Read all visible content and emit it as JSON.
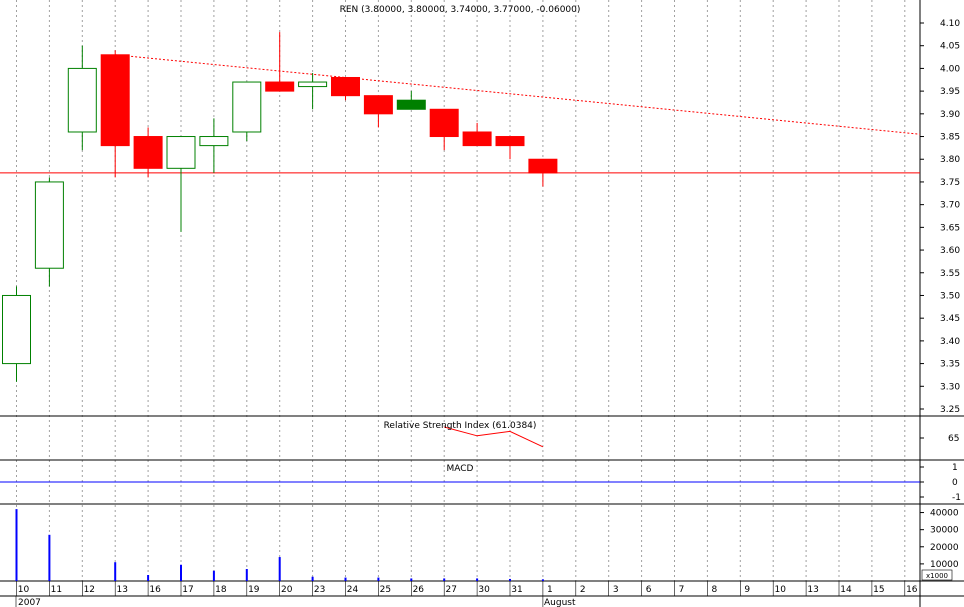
{
  "chart_data": {
    "type": "candlestick",
    "title": "REN (3.80000, 3.80000, 3.74000, 3.77000, -0.06000)",
    "colors": {
      "up": "#008000",
      "down": "#ff0000",
      "background": "#ffffff",
      "grid": "#a0a0a0",
      "volume": "#0000ff"
    },
    "price_axis": {
      "min": 3.25,
      "max": 4.1,
      "ticks": [
        "4.10",
        "4.05",
        "4.00",
        "3.95",
        "3.90",
        "3.85",
        "3.80",
        "3.75",
        "3.70",
        "3.65",
        "3.60",
        "3.55",
        "3.50",
        "3.45",
        "3.40",
        "3.35",
        "3.30",
        "3.25"
      ]
    },
    "candles": [
      {
        "date": "10",
        "open": 3.35,
        "high": 3.52,
        "low": 3.31,
        "close": 3.5
      },
      {
        "date": "11",
        "open": 3.56,
        "high": 3.76,
        "low": 3.52,
        "close": 3.75
      },
      {
        "date": "12",
        "open": 3.86,
        "high": 4.05,
        "low": 3.82,
        "close": 4.0
      },
      {
        "date": "13",
        "open": 4.03,
        "high": 4.04,
        "low": 3.76,
        "close": 3.83
      },
      {
        "date": "16",
        "open": 3.85,
        "high": 3.87,
        "low": 3.76,
        "close": 3.78
      },
      {
        "date": "17",
        "open": 3.78,
        "high": 3.85,
        "low": 3.64,
        "close": 3.85
      },
      {
        "date": "18",
        "open": 3.83,
        "high": 3.89,
        "low": 3.77,
        "close": 3.85
      },
      {
        "date": "19",
        "open": 3.86,
        "high": 3.97,
        "low": 3.84,
        "close": 3.97
      },
      {
        "date": "20",
        "open": 3.97,
        "high": 4.08,
        "low": 3.95,
        "close": 3.95
      },
      {
        "date": "23",
        "open": 3.96,
        "high": 3.99,
        "low": 3.91,
        "close": 3.97
      },
      {
        "date": "24",
        "open": 3.98,
        "high": 3.98,
        "low": 3.93,
        "close": 3.94
      },
      {
        "date": "25",
        "open": 3.94,
        "high": 3.94,
        "low": 3.87,
        "close": 3.9
      },
      {
        "date": "26",
        "open": 3.91,
        "high": 3.95,
        "low": 3.91,
        "close": 3.93
      },
      {
        "date": "27",
        "open": 3.91,
        "high": 3.91,
        "low": 3.82,
        "close": 3.85
      },
      {
        "date": "30",
        "open": 3.86,
        "high": 3.88,
        "low": 3.83,
        "close": 3.83
      },
      {
        "date": "31",
        "open": 3.85,
        "high": 3.85,
        "low": 3.8,
        "close": 3.83
      },
      {
        "date": "1",
        "open": 3.8,
        "high": 3.8,
        "low": 3.74,
        "close": 3.77
      }
    ],
    "trendline": {
      "from": {
        "date": "13",
        "price": 4.03
      },
      "to": {
        "date": "16",
        "price": 3.855
      }
    },
    "support_line": {
      "price": 3.77
    },
    "rsi": {
      "label": "Relative Strength Index (61.0384)",
      "tick": "65",
      "points": [
        {
          "date": "27",
          "value": 70
        },
        {
          "date": "30",
          "value": 66
        },
        {
          "date": "31",
          "value": 68
        },
        {
          "date": "1",
          "value": 61
        }
      ]
    },
    "macd": {
      "label": "MACD",
      "ticks": [
        "1",
        "0",
        "-1"
      ]
    },
    "volume": {
      "ticks": [
        "40000",
        "30000",
        "20000",
        "10000"
      ],
      "unit": "x1000",
      "values": [
        42000,
        27000,
        0,
        11000,
        3500,
        9500,
        6000,
        7000,
        14000,
        2500,
        2000,
        2000,
        1500,
        1500,
        1500,
        1200,
        1000
      ]
    },
    "dates": [
      "10",
      "11",
      "12",
      "13",
      "16",
      "17",
      "18",
      "19",
      "20",
      "23",
      "24",
      "25",
      "26",
      "27",
      "30",
      "31",
      "1",
      "2",
      "3",
      "6",
      "7",
      "8",
      "9",
      "10",
      "13",
      "14",
      "15",
      "16"
    ],
    "year_label": "2007",
    "month_label": "August"
  }
}
